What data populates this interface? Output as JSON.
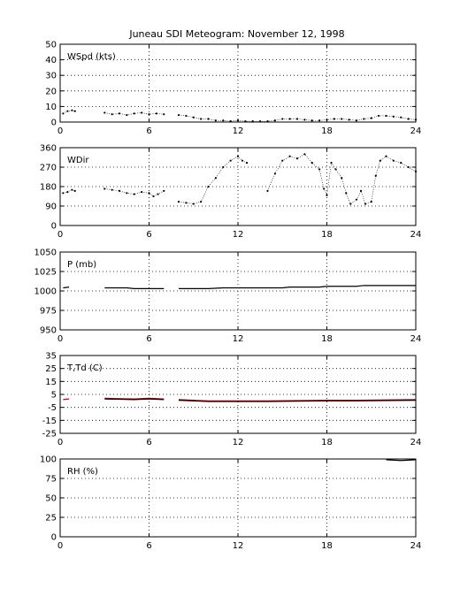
{
  "title": "Juneau SDI Meteogram:  November 12, 1998",
  "colors": {
    "axis": "#000000",
    "series_black": "#000000",
    "series_red": "#cc0000"
  },
  "chart_data": [
    {
      "type": "scatter",
      "label": "WSpd (kts)",
      "xlim": [
        0,
        24
      ],
      "xticks": [
        0,
        6,
        12,
        18,
        24
      ],
      "ylim": [
        0,
        50
      ],
      "yticks": [
        0,
        10,
        20,
        30,
        40,
        50
      ],
      "grid": true,
      "series": [
        {
          "color": "#000000",
          "segments": [
            [
              [
                0.2,
                5.5
              ],
              [
                0.5,
                7
              ],
              [
                0.8,
                7.5
              ],
              [
                1.0,
                7
              ]
            ],
            [
              [
                3.0,
                6
              ],
              [
                3.5,
                5
              ],
              [
                4.0,
                5.5
              ],
              [
                4.5,
                4.5
              ],
              [
                5.0,
                5.5
              ],
              [
                5.5,
                6
              ],
              [
                6.0,
                5
              ],
              [
                6.5,
                5.5
              ],
              [
                7.0,
                5
              ]
            ],
            [
              [
                8.0,
                4.5
              ],
              [
                8.5,
                4
              ],
              [
                9.0,
                3
              ],
              [
                9.5,
                2
              ],
              [
                10.0,
                2
              ],
              [
                10.5,
                1
              ],
              [
                11.0,
                1
              ],
              [
                11.5,
                0.5
              ],
              [
                12.0,
                1
              ],
              [
                12.5,
                0.5
              ],
              [
                13.0,
                0.5
              ],
              [
                13.5,
                0.5
              ],
              [
                14.0,
                0.5
              ],
              [
                14.5,
                1
              ],
              [
                15.0,
                2
              ],
              [
                15.5,
                2
              ],
              [
                16.0,
                2
              ],
              [
                16.5,
                1.5
              ],
              [
                17.0,
                1
              ],
              [
                17.5,
                1
              ],
              [
                18.0,
                1.5
              ],
              [
                18.5,
                2
              ],
              [
                19.0,
                2
              ],
              [
                19.5,
                1.5
              ],
              [
                20.0,
                1
              ],
              [
                20.5,
                2
              ],
              [
                21.0,
                2.5
              ],
              [
                21.5,
                4
              ],
              [
                22.0,
                4
              ],
              [
                22.5,
                3.5
              ],
              [
                23.0,
                3
              ],
              [
                23.5,
                2
              ],
              [
                24.0,
                1.5
              ]
            ]
          ]
        }
      ]
    },
    {
      "type": "scatter",
      "label": "WDir",
      "xlim": [
        0,
        24
      ],
      "xticks": [
        0,
        6,
        12,
        18,
        24
      ],
      "ylim": [
        0,
        360
      ],
      "yticks": [
        0,
        90,
        180,
        270,
        360
      ],
      "grid": true,
      "series": [
        {
          "color": "#000000",
          "segments": [
            [
              [
                0.2,
                150
              ],
              [
                0.5,
                155
              ],
              [
                0.8,
                165
              ],
              [
                1.0,
                160
              ]
            ],
            [
              [
                3.0,
                170
              ],
              [
                3.5,
                165
              ],
              [
                4.0,
                160
              ],
              [
                4.5,
                150
              ],
              [
                5.0,
                145
              ],
              [
                5.5,
                155
              ],
              [
                6.0,
                150
              ],
              [
                6.3,
                135
              ],
              [
                6.6,
                145
              ],
              [
                7.0,
                160
              ]
            ],
            [
              [
                8.0,
                110
              ],
              [
                8.5,
                105
              ],
              [
                9.0,
                100
              ],
              [
                9.5,
                110
              ],
              [
                10.0,
                180
              ],
              [
                10.5,
                220
              ],
              [
                11.0,
                270
              ],
              [
                11.5,
                300
              ],
              [
                12.0,
                320
              ],
              [
                12.3,
                300
              ],
              [
                12.6,
                290
              ]
            ],
            [
              [
                14.0,
                160
              ],
              [
                14.5,
                240
              ],
              [
                15.0,
                300
              ],
              [
                15.5,
                320
              ],
              [
                16.0,
                310
              ],
              [
                16.5,
                330
              ],
              [
                17.0,
                290
              ],
              [
                17.5,
                260
              ],
              [
                17.8,
                170
              ],
              [
                18.0,
                140
              ],
              [
                18.3,
                290
              ],
              [
                18.6,
                260
              ],
              [
                19.0,
                220
              ],
              [
                19.3,
                150
              ],
              [
                19.6,
                100
              ],
              [
                20.0,
                120
              ],
              [
                20.3,
                160
              ],
              [
                20.6,
                100
              ],
              [
                21.0,
                110
              ],
              [
                21.3,
                230
              ],
              [
                21.6,
                300
              ],
              [
                22.0,
                320
              ],
              [
                22.5,
                300
              ],
              [
                23.0,
                290
              ],
              [
                23.5,
                270
              ],
              [
                24.0,
                250
              ]
            ]
          ]
        }
      ]
    },
    {
      "type": "line",
      "label": "P (mb)",
      "xlim": [
        0,
        24
      ],
      "xticks": [
        0,
        6,
        12,
        18,
        24
      ],
      "ylim": [
        950,
        1050
      ],
      "yticks": [
        950,
        975,
        1000,
        1025,
        1050
      ],
      "grid": true,
      "series": [
        {
          "color": "#000000",
          "segments": [
            [
              [
                0.2,
                1004
              ],
              [
                0.6,
                1005
              ]
            ],
            [
              [
                3.0,
                1004
              ],
              [
                4.5,
                1004
              ],
              [
                5.0,
                1003
              ],
              [
                7.0,
                1003
              ]
            ],
            [
              [
                8.0,
                1003
              ],
              [
                10.0,
                1003
              ],
              [
                11.0,
                1004
              ],
              [
                15.0,
                1004
              ],
              [
                15.5,
                1005
              ],
              [
                17.5,
                1005
              ],
              [
                18.0,
                1006
              ],
              [
                20.0,
                1006
              ],
              [
                20.5,
                1007
              ],
              [
                24.0,
                1007
              ]
            ]
          ]
        }
      ]
    },
    {
      "type": "line",
      "label": "T,Td (C)",
      "xlim": [
        0,
        24
      ],
      "xticks": [
        0,
        6,
        12,
        18,
        24
      ],
      "ylim": [
        -25,
        35
      ],
      "yticks": [
        -25,
        -15,
        -5,
        5,
        15,
        25,
        35
      ],
      "grid": true,
      "series": [
        {
          "color": "#cc0000",
          "segments": [
            [
              [
                0.2,
                1
              ],
              [
                0.6,
                1.5
              ]
            ],
            [
              [
                3.0,
                2
              ],
              [
                5.0,
                1.5
              ],
              [
                6.0,
                2
              ],
              [
                7.0,
                1.5
              ]
            ],
            [
              [
                8.0,
                1
              ],
              [
                10.0,
                0
              ],
              [
                14.0,
                0
              ],
              [
                18.0,
                0.5
              ],
              [
                20.0,
                0.5
              ],
              [
                24.0,
                1
              ]
            ]
          ]
        },
        {
          "color": "#000000",
          "segments": [
            [
              [
                3.0,
                1.5
              ],
              [
                5.0,
                1
              ],
              [
                6.0,
                1.5
              ],
              [
                7.0,
                1
              ]
            ],
            [
              [
                8.0,
                0.5
              ],
              [
                10.0,
                -0.5
              ],
              [
                14.0,
                -0.5
              ],
              [
                18.0,
                0
              ],
              [
                20.0,
                0
              ],
              [
                24.0,
                0.5
              ]
            ]
          ]
        }
      ]
    },
    {
      "type": "line",
      "label": "RH (%)",
      "xlim": [
        0,
        24
      ],
      "xticks": [
        0,
        6,
        12,
        18,
        24
      ],
      "ylim": [
        0,
        100
      ],
      "yticks": [
        0,
        25,
        50,
        75,
        100
      ],
      "grid": true,
      "series": [
        {
          "color": "#000000",
          "segments": [
            [
              [
                22.0,
                99
              ],
              [
                23.0,
                98
              ],
              [
                24.0,
                99
              ]
            ]
          ]
        }
      ]
    }
  ]
}
